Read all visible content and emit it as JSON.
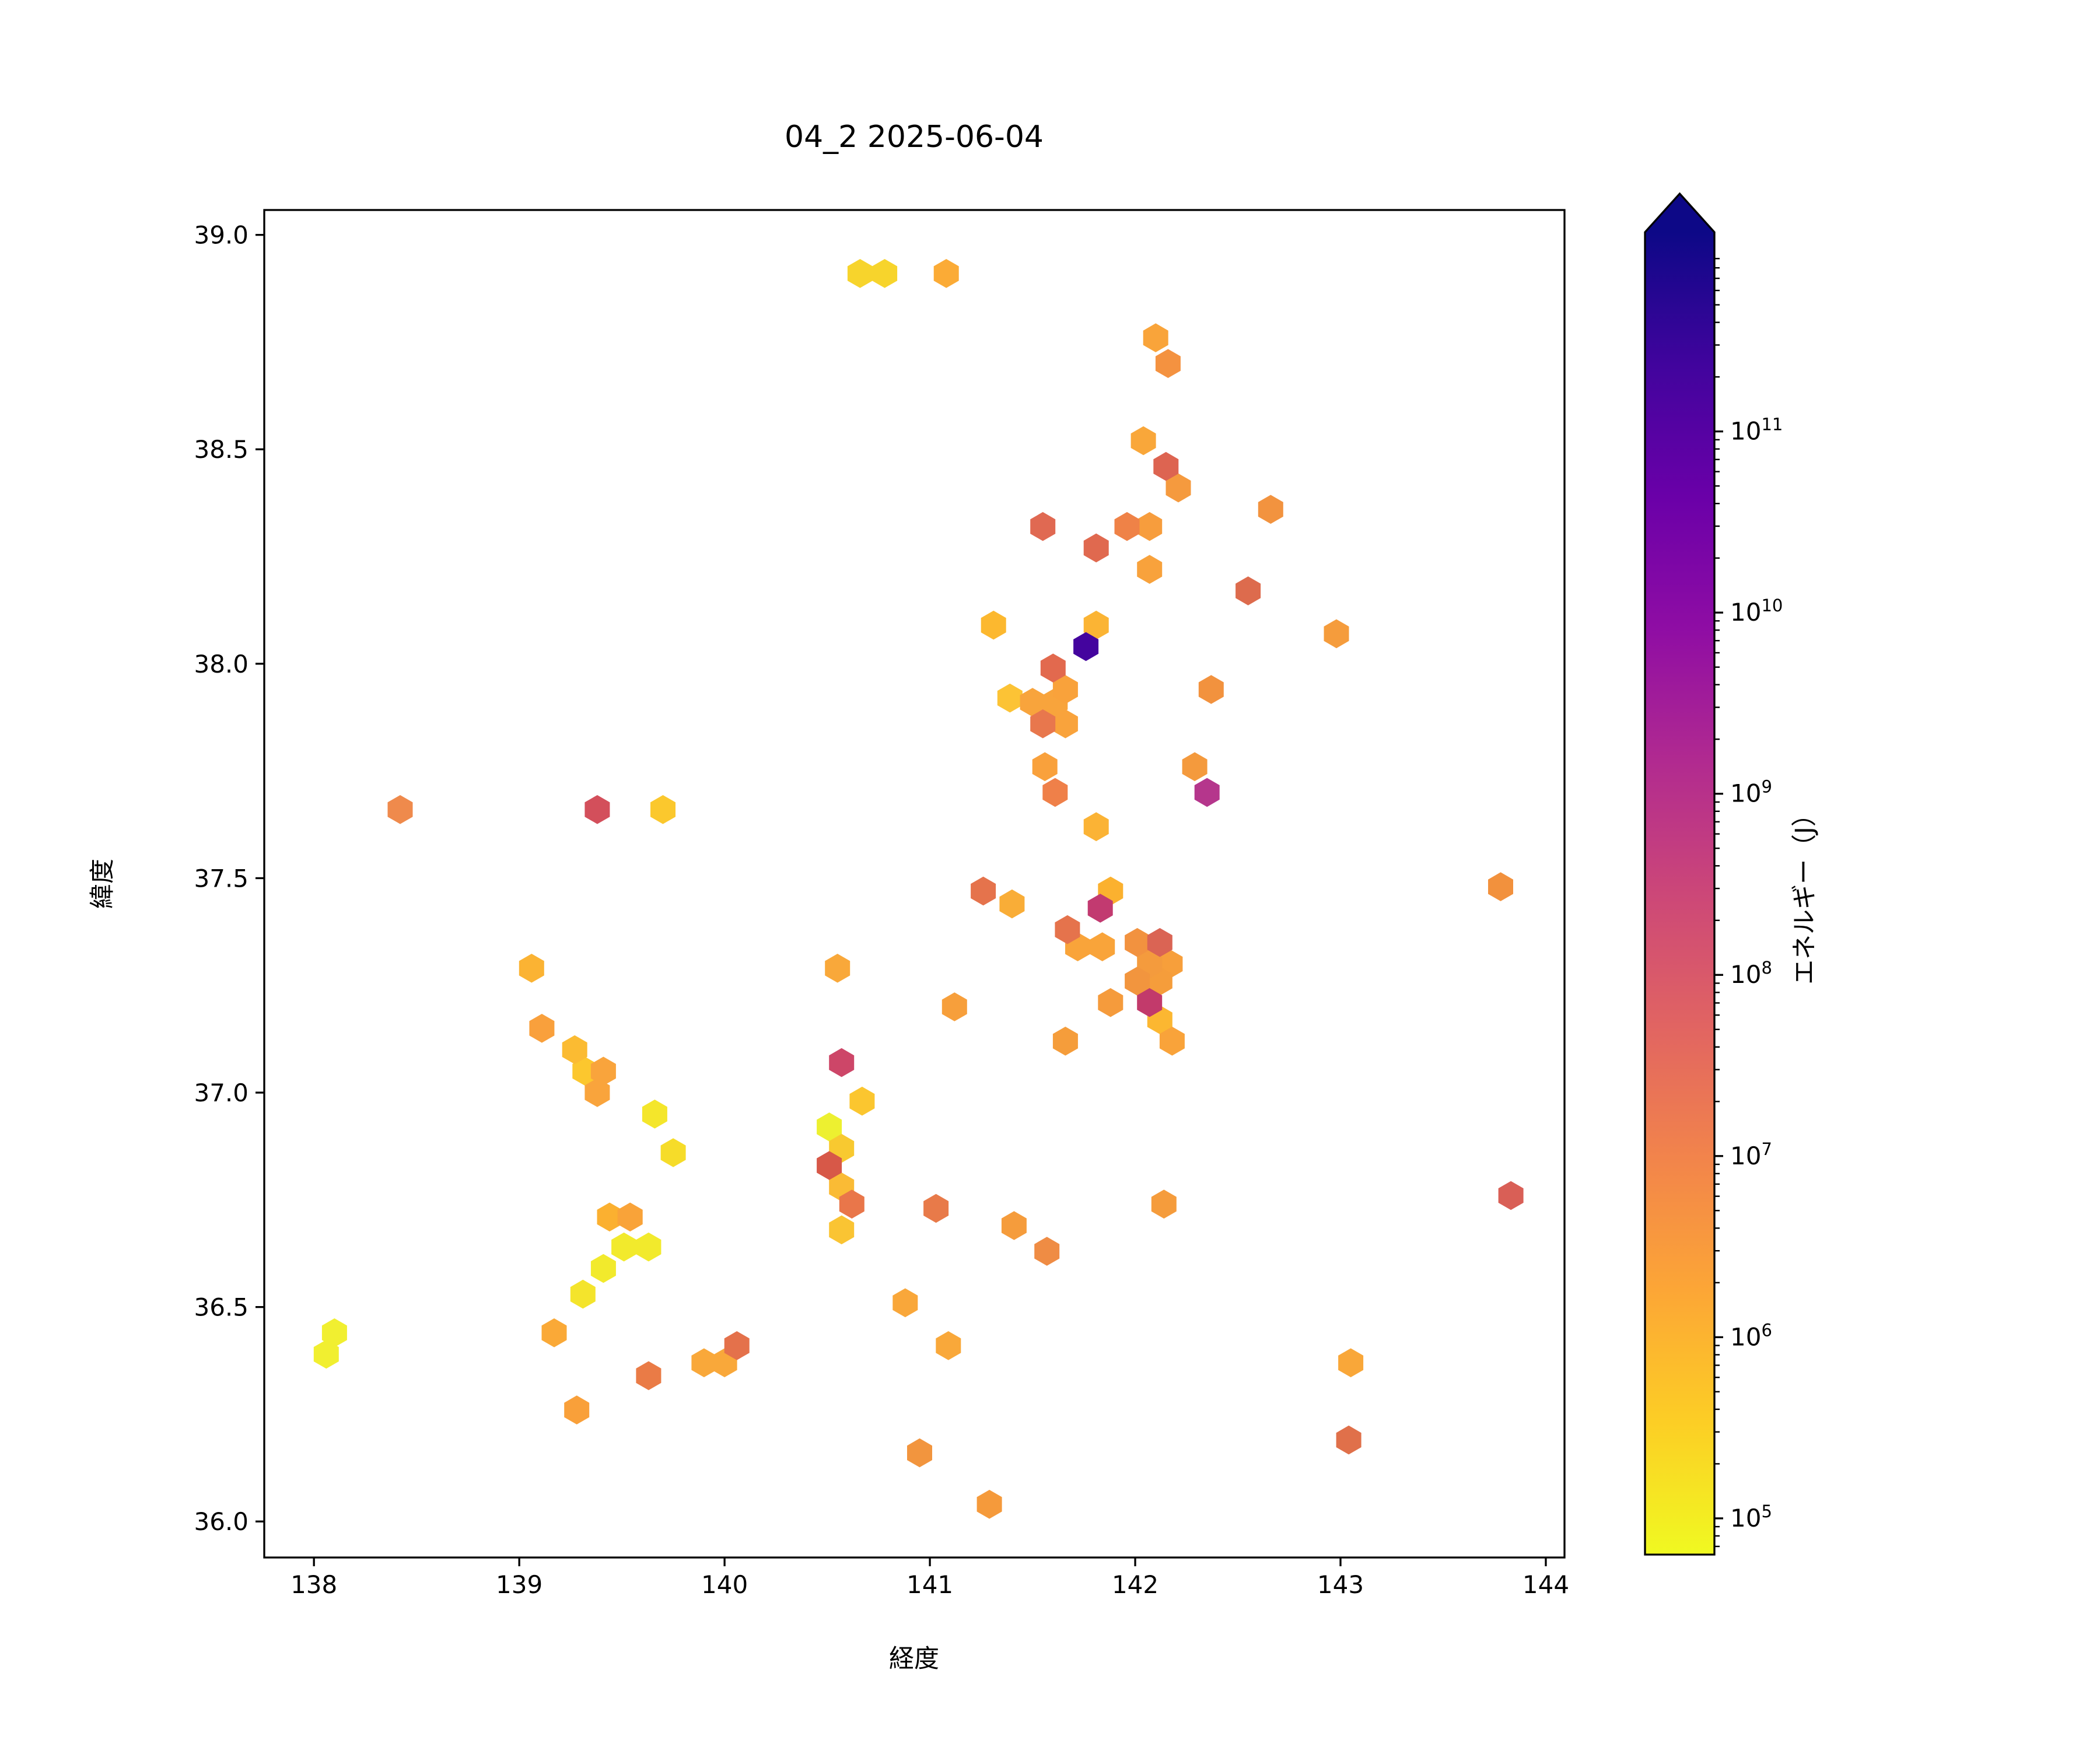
{
  "figure": {
    "title": "04_2 2025-06-04",
    "background": "#ffffff"
  },
  "chart_data": {
    "type": "hexbin",
    "title": "04_2 2025-06-04",
    "xlabel": "経度",
    "ylabel": "緯度",
    "xlim": [
      137.758,
      144.091
    ],
    "ylim": [
      35.916,
      39.058
    ],
    "x_tick_values": [
      138,
      139,
      140,
      141,
      142,
      143,
      144
    ],
    "x_tick_labels": [
      "138",
      "139",
      "140",
      "141",
      "142",
      "143",
      "144"
    ],
    "y_tick_values": [
      36.0,
      36.5,
      37.0,
      37.5,
      38.0,
      38.5,
      39.0
    ],
    "y_tick_labels": [
      "36.0",
      "36.5",
      "37.0",
      "37.5",
      "38.0",
      "38.5",
      "39.0"
    ],
    "grid": false,
    "colorbar": {
      "label": "エネルギー（J）",
      "scale": "log",
      "tick_exponents": [
        5,
        6,
        7,
        8,
        9,
        10,
        11
      ],
      "range_exponents": [
        4.8,
        12.1
      ],
      "extend": "max",
      "cmap": "plasma_r",
      "cmap_stops": [
        "#0d0887",
        "#41049d",
        "#6a00a8",
        "#8f0da4",
        "#b12a90",
        "#cc4778",
        "#e16462",
        "#f2844b",
        "#fca636",
        "#fcce25",
        "#f0f921"
      ],
      "position": "right"
    },
    "points": [
      {
        "x": 140.66,
        "y": 38.91,
        "e": 500000.0,
        "c": "#f7d42c"
      },
      {
        "x": 140.78,
        "y": 38.91,
        "e": 500000.0,
        "c": "#f7d42c"
      },
      {
        "x": 141.08,
        "y": 38.91,
        "e": 1500000.0,
        "c": "#fbab36"
      },
      {
        "x": 142.1,
        "y": 38.76,
        "e": 3000000.0,
        "c": "#f9a43a"
      },
      {
        "x": 142.16,
        "y": 38.7,
        "e": 6000000.0,
        "c": "#f49240"
      },
      {
        "x": 142.04,
        "y": 38.52,
        "e": 2500000.0,
        "c": "#f9a73a"
      },
      {
        "x": 142.15,
        "y": 38.46,
        "e": 60000000.0,
        "c": "#dd6451"
      },
      {
        "x": 142.21,
        "y": 38.41,
        "e": 4000000.0,
        "c": "#f59a3e"
      },
      {
        "x": 142.66,
        "y": 38.36,
        "e": 6000000.0,
        "c": "#f2933f"
      },
      {
        "x": 141.55,
        "y": 38.32,
        "e": 45000000.0,
        "c": "#e06952"
      },
      {
        "x": 141.96,
        "y": 38.32,
        "e": 14000000.0,
        "c": "#ef8247"
      },
      {
        "x": 142.07,
        "y": 38.32,
        "e": 3500000.0,
        "c": "#f79d3d"
      },
      {
        "x": 141.81,
        "y": 38.27,
        "e": 45000000.0,
        "c": "#e0694f"
      },
      {
        "x": 142.07,
        "y": 38.22,
        "e": 3000000.0,
        "c": "#f8a23c"
      },
      {
        "x": 142.55,
        "y": 38.17,
        "e": 50000000.0,
        "c": "#dd6b4d"
      },
      {
        "x": 142.98,
        "y": 38.07,
        "e": 4000000.0,
        "c": "#f59c3c"
      },
      {
        "x": 141.31,
        "y": 38.09,
        "e": 1000000.0,
        "c": "#fcb82f"
      },
      {
        "x": 141.81,
        "y": 38.09,
        "e": 1200000.0,
        "c": "#fbb434"
      },
      {
        "x": 141.76,
        "y": 38.04,
        "e": 120000000000.0,
        "c": "#44049e"
      },
      {
        "x": 141.6,
        "y": 37.99,
        "e": 40000000.0,
        "c": "#e2694e"
      },
      {
        "x": 141.66,
        "y": 37.94,
        "e": 3000000.0,
        "c": "#f9a23b"
      },
      {
        "x": 142.37,
        "y": 37.94,
        "e": 6500000.0,
        "c": "#f2923e"
      },
      {
        "x": 141.39,
        "y": 37.92,
        "e": 800000.0,
        "c": "#fcc335"
      },
      {
        "x": 141.5,
        "y": 37.91,
        "e": 2800000.0,
        "c": "#f8a43c"
      },
      {
        "x": 141.61,
        "y": 37.91,
        "e": 2800000.0,
        "c": "#f8a43c"
      },
      {
        "x": 141.55,
        "y": 37.86,
        "e": 20000000.0,
        "c": "#e8774d"
      },
      {
        "x": 141.66,
        "y": 37.86,
        "e": 3000000.0,
        "c": "#f9a33c"
      },
      {
        "x": 141.56,
        "y": 37.76,
        "e": 3200000.0,
        "c": "#f9a13c"
      },
      {
        "x": 141.61,
        "y": 37.7,
        "e": 15000000.0,
        "c": "#ef8049"
      },
      {
        "x": 142.29,
        "y": 37.76,
        "e": 4200000.0,
        "c": "#f49a3d"
      },
      {
        "x": 142.35,
        "y": 37.7,
        "e": 3000000000.0,
        "c": "#b5368c"
      },
      {
        "x": 143.78,
        "y": 37.48,
        "e": 7000000.0,
        "c": "#f2913d"
      },
      {
        "x": 141.81,
        "y": 37.62,
        "e": 1200000.0,
        "c": "#fbb335"
      },
      {
        "x": 141.26,
        "y": 37.47,
        "e": 25000000.0,
        "c": "#e5734c"
      },
      {
        "x": 141.4,
        "y": 37.44,
        "e": 1800000.0,
        "c": "#f9ad37"
      },
      {
        "x": 141.88,
        "y": 37.47,
        "e": 1300000.0,
        "c": "#fbb12f"
      },
      {
        "x": 141.83,
        "y": 37.43,
        "e": 700000000.0,
        "c": "#c23a70"
      },
      {
        "x": 141.67,
        "y": 37.38,
        "e": 25000000.0,
        "c": "#e5734c"
      },
      {
        "x": 141.72,
        "y": 37.34,
        "e": 2800000.0,
        "c": "#f9a43a"
      },
      {
        "x": 141.84,
        "y": 37.34,
        "e": 2800000.0,
        "c": "#f9a43a"
      },
      {
        "x": 142.01,
        "y": 37.35,
        "e": 6500000.0,
        "c": "#f2923f"
      },
      {
        "x": 142.12,
        "y": 37.35,
        "e": 80000000.0,
        "c": "#da6454"
      },
      {
        "x": 142.07,
        "y": 37.3,
        "e": 4000000.0,
        "c": "#f49b3d"
      },
      {
        "x": 142.17,
        "y": 37.3,
        "e": 3300000.0,
        "c": "#f79f3b"
      },
      {
        "x": 142.01,
        "y": 37.26,
        "e": 5500000.0,
        "c": "#f2953e"
      },
      {
        "x": 142.12,
        "y": 37.26,
        "e": 3800000.0,
        "c": "#f59d3b"
      },
      {
        "x": 142.07,
        "y": 37.21,
        "e": 800000000.0,
        "c": "#c23a6b"
      },
      {
        "x": 142.12,
        "y": 37.17,
        "e": 1100000.0,
        "c": "#fcb731"
      },
      {
        "x": 142.18,
        "y": 37.12,
        "e": 3000000.0,
        "c": "#f9a33a"
      },
      {
        "x": 141.88,
        "y": 37.21,
        "e": 4000000.0,
        "c": "#f59b3c"
      },
      {
        "x": 141.66,
        "y": 37.12,
        "e": 3800000.0,
        "c": "#f59d3b"
      },
      {
        "x": 141.12,
        "y": 37.2,
        "e": 3300000.0,
        "c": "#f79f3b"
      },
      {
        "x": 140.55,
        "y": 37.29,
        "e": 2400000.0,
        "c": "#f9a83a"
      },
      {
        "x": 140.57,
        "y": 37.07,
        "e": 300000000.0,
        "c": "#cd4668"
      },
      {
        "x": 139.06,
        "y": 37.29,
        "e": 1200000.0,
        "c": "#fbb333"
      },
      {
        "x": 139.11,
        "y": 37.15,
        "e": 3200000.0,
        "c": "#f9a03c"
      },
      {
        "x": 139.27,
        "y": 37.1,
        "e": 1000000.0,
        "c": "#fbbb32"
      },
      {
        "x": 139.32,
        "y": 37.05,
        "e": 650000.0,
        "c": "#fcc72e"
      },
      {
        "x": 139.41,
        "y": 37.05,
        "e": 2800000.0,
        "c": "#f9a43c"
      },
      {
        "x": 139.38,
        "y": 37.0,
        "e": 2800000.0,
        "c": "#f9a43c"
      },
      {
        "x": 139.66,
        "y": 36.95,
        "e": 180000.0,
        "c": "#f4e62b"
      },
      {
        "x": 139.75,
        "y": 36.86,
        "e": 300000.0,
        "c": "#f6dc29"
      },
      {
        "x": 138.42,
        "y": 37.66,
        "e": 12000000.0,
        "c": "#ef8a4c"
      },
      {
        "x": 139.38,
        "y": 37.66,
        "e": 150000000.0,
        "c": "#d34f5b"
      },
      {
        "x": 139.7,
        "y": 37.66,
        "e": 700000.0,
        "c": "#fbc82d"
      },
      {
        "x": 140.67,
        "y": 36.98,
        "e": 700000.0,
        "c": "#fbc62f"
      },
      {
        "x": 140.51,
        "y": 36.92,
        "e": 120000.0,
        "c": "#edf030"
      },
      {
        "x": 140.57,
        "y": 36.87,
        "e": 650000.0,
        "c": "#f8c930"
      },
      {
        "x": 140.51,
        "y": 36.83,
        "e": 120000000.0,
        "c": "#d75848"
      },
      {
        "x": 140.57,
        "y": 36.78,
        "e": 1000000.0,
        "c": "#fabb35"
      },
      {
        "x": 140.62,
        "y": 36.74,
        "e": 18000000.0,
        "c": "#e9764a"
      },
      {
        "x": 140.57,
        "y": 36.68,
        "e": 800000.0,
        "c": "#fac433"
      },
      {
        "x": 141.03,
        "y": 36.73,
        "e": 16000000.0,
        "c": "#e87a49"
      },
      {
        "x": 141.41,
        "y": 36.69,
        "e": 4000000.0,
        "c": "#f59c3c"
      },
      {
        "x": 141.57,
        "y": 36.63,
        "e": 11000000.0,
        "c": "#ef8c44"
      },
      {
        "x": 142.14,
        "y": 36.74,
        "e": 4000000.0,
        "c": "#f59c3c"
      },
      {
        "x": 140.88,
        "y": 36.51,
        "e": 2500000.0,
        "c": "#f9a73a"
      },
      {
        "x": 141.09,
        "y": 36.41,
        "e": 2400000.0,
        "c": "#f9a83a"
      },
      {
        "x": 139.44,
        "y": 36.71,
        "e": 1400000.0,
        "c": "#fbb030"
      },
      {
        "x": 139.54,
        "y": 36.71,
        "e": 3000000.0,
        "c": "#f9a339"
      },
      {
        "x": 139.51,
        "y": 36.64,
        "e": 150000.0,
        "c": "#f2ea2c"
      },
      {
        "x": 139.63,
        "y": 36.64,
        "e": 150000.0,
        "c": "#f2ea2c"
      },
      {
        "x": 139.41,
        "y": 36.59,
        "e": 150000.0,
        "c": "#f2ea2c"
      },
      {
        "x": 139.31,
        "y": 36.53,
        "e": 200000.0,
        "c": "#f4e42c"
      },
      {
        "x": 138.1,
        "y": 36.44,
        "e": 130000.0,
        "c": "#f1ef30"
      },
      {
        "x": 138.06,
        "y": 36.39,
        "e": 130000.0,
        "c": "#f1ef30"
      },
      {
        "x": 139.17,
        "y": 36.44,
        "e": 2000000.0,
        "c": "#faa937"
      },
      {
        "x": 139.28,
        "y": 36.26,
        "e": 3200000.0,
        "c": "#f9a03a"
      },
      {
        "x": 139.63,
        "y": 36.34,
        "e": 15000000.0,
        "c": "#ea7b46"
      },
      {
        "x": 139.9,
        "y": 36.37,
        "e": 2400000.0,
        "c": "#f9a83a"
      },
      {
        "x": 140.0,
        "y": 36.37,
        "e": 2400000.0,
        "c": "#f9a83a"
      },
      {
        "x": 140.06,
        "y": 36.41,
        "e": 28000000.0,
        "c": "#e4714b"
      },
      {
        "x": 143.05,
        "y": 36.37,
        "e": 2500000.0,
        "c": "#f9a739"
      },
      {
        "x": 143.04,
        "y": 36.19,
        "e": 30000000.0,
        "c": "#e0704a"
      },
      {
        "x": 140.95,
        "y": 36.16,
        "e": 5500000.0,
        "c": "#f2953e"
      },
      {
        "x": 141.29,
        "y": 36.04,
        "e": 4200000.0,
        "c": "#f59a3b"
      },
      {
        "x": 143.83,
        "y": 36.76,
        "e": 90000000.0,
        "c": "#d95f56"
      }
    ]
  }
}
